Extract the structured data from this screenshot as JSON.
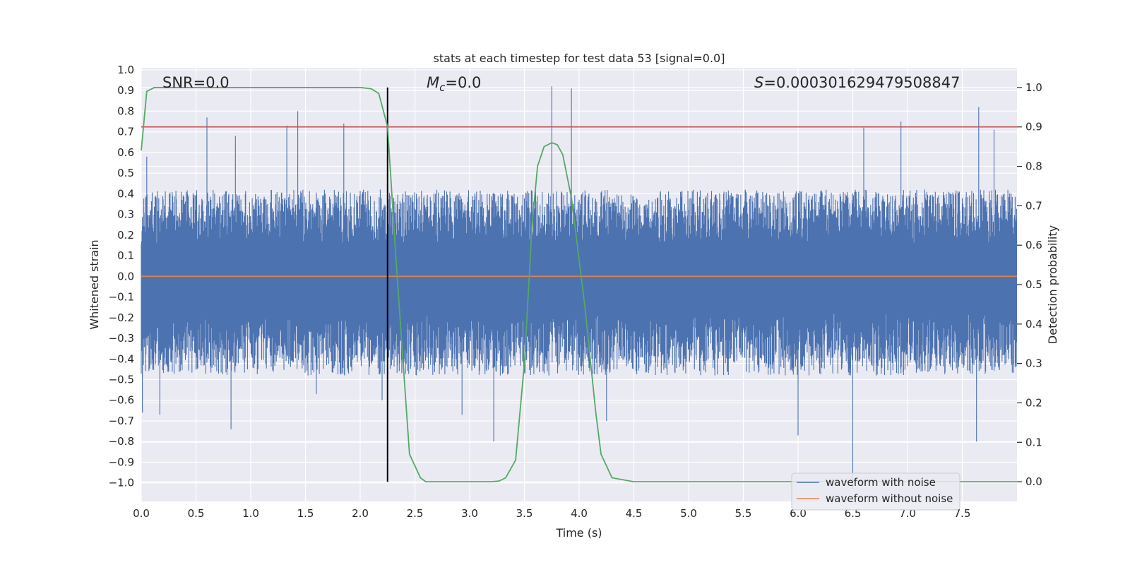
{
  "chart_data": {
    "type": "line",
    "title": "stats at each timestep for test data 53 [signal=0.0]",
    "xlabel": "Time (s)",
    "ylabel_left": "Whitened strain",
    "ylabel_right": "Detection probability",
    "xlim": [
      0.0,
      8.0
    ],
    "ylim_left": [
      -1.09,
      1.01
    ],
    "ylim_right": [
      -0.05,
      1.05
    ],
    "x_ticks": [
      0.0,
      0.5,
      1.0,
      1.5,
      2.0,
      2.5,
      3.0,
      3.5,
      4.0,
      4.5,
      5.0,
      5.5,
      6.0,
      6.5,
      7.0,
      7.5
    ],
    "x_tick_labels": [
      "0.0",
      "0.5",
      "1.0",
      "1.5",
      "2.0",
      "2.5",
      "3.0",
      "3.5",
      "4.0",
      "4.5",
      "5.0",
      "5.5",
      "6.0",
      "6.5",
      "7.0",
      "7.5"
    ],
    "y_left_ticks": [
      1.0,
      0.9,
      0.8,
      0.7,
      0.6,
      0.5,
      0.4,
      0.3,
      0.2,
      0.1,
      0.0,
      -0.1,
      -0.2,
      -0.3,
      -0.4,
      -0.5,
      -0.6,
      -0.7,
      -0.8,
      -0.9,
      -1.0
    ],
    "y_left_tick_labels": [
      "1.0",
      "0.9",
      "0.8",
      "0.7",
      "0.6",
      "0.5",
      "0.4",
      "0.3",
      "0.2",
      "0.1",
      "0.0",
      "−0.1",
      "−0.2",
      "−0.3",
      "−0.4",
      "−0.5",
      "−0.6",
      "−0.7",
      "−0.8",
      "−0.9",
      "−1.0"
    ],
    "y_right_ticks": [
      1.0,
      0.9,
      0.8,
      0.7,
      0.6,
      0.5,
      0.4,
      0.3,
      0.2,
      0.1,
      0.0
    ],
    "y_right_tick_labels": [
      "1.0",
      "0.9",
      "0.8",
      "0.7",
      "0.6",
      "0.5",
      "0.4",
      "0.3",
      "0.2",
      "0.1",
      "0.0"
    ],
    "annotations": {
      "snr": "SNR=0.0",
      "mc_symbol": "M",
      "mc_subscript": "c",
      "mc_value": "=0.0",
      "s_symbol": "S",
      "s_value": "=0.000301629479508847"
    },
    "threshold": 0.9,
    "vertical_marker_x": 2.25,
    "series": [
      {
        "name": "waveform with noise",
        "axis": "left",
        "color": "#4c72b0",
        "style": "noise",
        "envelope_upper": 0.35,
        "envelope_lower": -0.4,
        "spikes": [
          [
            0.01,
            -0.66
          ],
          [
            0.05,
            0.58
          ],
          [
            0.17,
            -0.67
          ],
          [
            0.6,
            0.77
          ],
          [
            0.8,
            0.4
          ],
          [
            0.82,
            -0.74
          ],
          [
            0.86,
            0.68
          ],
          [
            1.33,
            0.73
          ],
          [
            1.43,
            0.8
          ],
          [
            1.6,
            -0.57
          ],
          [
            1.85,
            0.74
          ],
          [
            2.2,
            -0.6
          ],
          [
            2.93,
            -0.67
          ],
          [
            3.22,
            -0.8
          ],
          [
            3.75,
            0.92
          ],
          [
            3.93,
            0.91
          ],
          [
            4.25,
            -0.7
          ],
          [
            6.0,
            -0.77
          ],
          [
            6.5,
            -1.03
          ],
          [
            6.6,
            0.72
          ],
          [
            6.94,
            0.75
          ],
          [
            7.63,
            -0.8
          ],
          [
            7.65,
            0.82
          ],
          [
            7.79,
            0.71
          ]
        ]
      },
      {
        "name": "waveform without noise",
        "axis": "left",
        "color": "#dd8452",
        "x": [
          0.0,
          8.0
        ],
        "y": [
          0.0,
          0.0
        ]
      },
      {
        "name": "detection probability",
        "axis": "right",
        "color": "#55a868",
        "x": [
          0.0,
          0.05,
          0.12,
          0.2,
          1.5,
          2.0,
          2.1,
          2.17,
          2.25,
          2.33,
          2.45,
          2.55,
          2.6,
          2.7,
          3.0,
          3.2,
          3.27,
          3.33,
          3.42,
          3.5,
          3.57,
          3.62,
          3.68,
          3.75,
          3.8,
          3.85,
          3.93,
          4.05,
          4.15,
          4.2,
          4.3,
          4.5,
          8.0
        ],
        "y": [
          0.84,
          0.99,
          1.0,
          1.0,
          1.0,
          1.0,
          0.997,
          0.985,
          0.9,
          0.55,
          0.07,
          0.01,
          0.0,
          0.0,
          0.0,
          0.0,
          0.002,
          0.01,
          0.055,
          0.3,
          0.65,
          0.8,
          0.85,
          0.86,
          0.855,
          0.83,
          0.72,
          0.45,
          0.18,
          0.07,
          0.01,
          0.0,
          0.0
        ]
      }
    ],
    "legend_position": "lower-right",
    "legend_entries": [
      "waveform with noise",
      "waveform without noise"
    ],
    "grid": true,
    "colors": {
      "background": "#eaeaf2",
      "grid": "#ffffff",
      "threshold": "#c44e52",
      "marker": "#000000",
      "text": "#262626"
    }
  }
}
